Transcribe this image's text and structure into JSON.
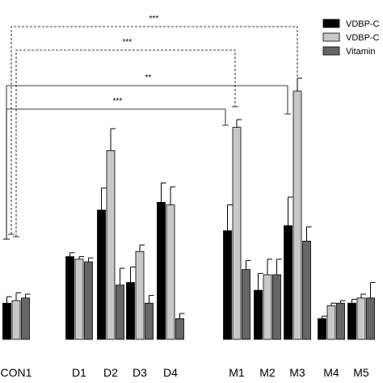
{
  "chart_data": {
    "type": "bar",
    "title": "",
    "xlabel": "",
    "ylabel": "",
    "ylim": [
      0,
      100
    ],
    "categories": [
      "CON1",
      "D1",
      "D2",
      "D3",
      "D4",
      "M1",
      "M2",
      "M3",
      "M4",
      "M5"
    ],
    "series": [
      {
        "name": "VDBP-C",
        "color": "#000000",
        "values": [
          14,
          32,
          50,
          22,
          53,
          42,
          19,
          44,
          8,
          14
        ],
        "errors": [
          2.5,
          1.5,
          8.5,
          6,
          7.5,
          10,
          6.5,
          11,
          1,
          1.5
        ]
      },
      {
        "name": "VDBP-C",
        "color": "#c8c8c8",
        "values": [
          15,
          31,
          73,
          34,
          52,
          82,
          25,
          96,
          13,
          16
        ],
        "errors": [
          3,
          1,
          8.5,
          2.5,
          7,
          3,
          6,
          5,
          1,
          1.5
        ]
      },
      {
        "name": "Vitamin",
        "color": "#666666",
        "values": [
          16,
          30,
          21,
          14,
          8,
          27,
          25,
          38,
          14,
          16
        ],
        "errors": [
          1.5,
          1.5,
          6.5,
          3,
          2,
          3.5,
          6,
          5.5,
          1,
          6
        ]
      }
    ],
    "significance": [
      {
        "label": "***",
        "from": "CON1",
        "to": "M3",
        "series": "VDBP-C"
      },
      {
        "label": "***",
        "from": "CON1",
        "to": "M1",
        "series": "VDBP-C"
      },
      {
        "label": "**",
        "from": "CON1",
        "to": "M3",
        "series": "VDBP-C"
      },
      {
        "label": "***",
        "from": "CON1",
        "to": "M1",
        "series": "VDBP-C"
      }
    ],
    "legend_position": "top-right",
    "grid": false
  }
}
